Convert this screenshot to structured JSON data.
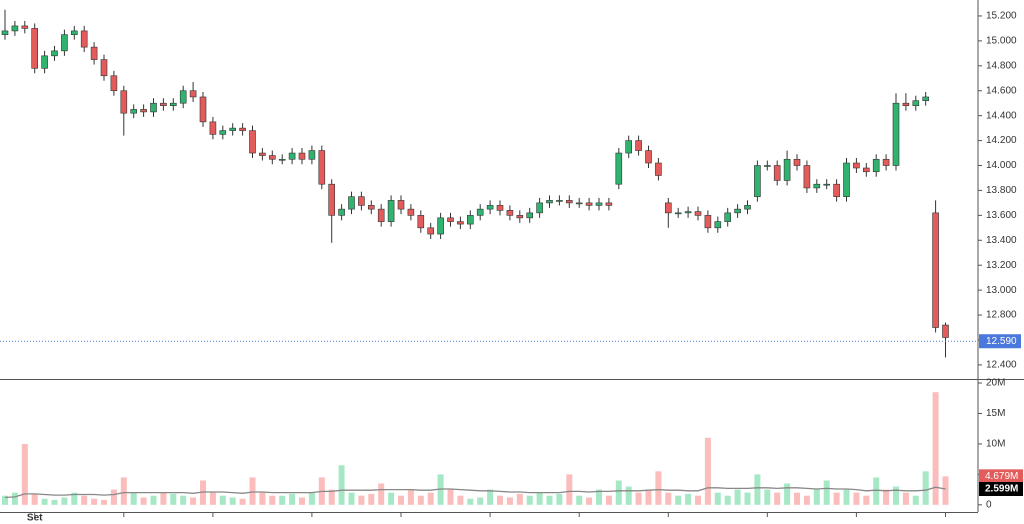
{
  "chart_data": {
    "type": "candlestick",
    "categories": [
      null,
      null,
      null,
      "Set",
      null,
      null,
      null,
      null,
      null,
      null,
      null,
      null,
      null,
      null,
      null,
      null,
      null,
      null,
      null,
      null,
      null,
      null,
      null,
      null,
      null,
      null,
      null,
      null,
      null,
      null,
      null,
      null,
      null,
      null,
      null,
      null,
      null,
      null,
      null,
      null,
      null,
      null,
      null,
      null,
      null,
      null,
      null,
      null,
      null,
      null,
      null,
      null,
      null,
      null,
      null,
      null,
      null,
      null,
      null,
      null,
      null,
      null,
      null,
      null,
      null,
      null,
      null,
      null,
      null,
      null,
      null,
      null,
      null,
      null,
      null,
      null,
      null,
      null,
      null,
      null,
      null,
      null,
      null,
      null,
      null,
      null,
      null,
      null,
      null,
      null,
      null,
      null,
      null,
      null,
      null,
      null
    ],
    "open": [
      15.05,
      15.08,
      15.12,
      15.1,
      14.78,
      14.88,
      14.92,
      15.05,
      15.08,
      14.95,
      14.85,
      14.72,
      14.6,
      14.42,
      14.45,
      14.43,
      14.5,
      14.48,
      14.5,
      14.6,
      14.55,
      14.35,
      14.25,
      14.28,
      14.3,
      14.28,
      14.1,
      14.08,
      14.05,
      14.05,
      14.1,
      14.05,
      14.12,
      13.85,
      13.6,
      13.65,
      13.75,
      13.68,
      13.65,
      13.55,
      13.72,
      13.65,
      13.6,
      13.5,
      13.45,
      13.58,
      13.55,
      13.53,
      13.6,
      13.65,
      13.68,
      13.64,
      13.6,
      13.58,
      13.62,
      13.7,
      13.72,
      13.72,
      13.7,
      13.7,
      13.68,
      13.7,
      13.85,
      14.1,
      14.2,
      14.12,
      14.02,
      13.7,
      13.62,
      13.62,
      13.63,
      13.6,
      13.5,
      13.55,
      13.62,
      13.65,
      13.75,
      14.0,
      14.0,
      13.88,
      14.05,
      14.0,
      13.82,
      13.85,
      13.85,
      13.75,
      14.02,
      13.98,
      13.95,
      14.05,
      14.0,
      14.5,
      14.48,
      14.52,
      13.62,
      12.72
    ],
    "high": [
      15.25,
      15.16,
      15.16,
      15.14,
      14.92,
      14.96,
      15.09,
      15.12,
      15.12,
      14.99,
      14.89,
      14.76,
      14.64,
      14.49,
      14.49,
      14.54,
      14.54,
      14.54,
      14.64,
      14.67,
      14.59,
      14.39,
      14.32,
      14.34,
      14.34,
      14.32,
      14.14,
      14.12,
      14.09,
      14.14,
      14.14,
      14.16,
      14.16,
      13.89,
      13.69,
      13.79,
      13.79,
      13.72,
      13.69,
      13.76,
      13.76,
      13.69,
      13.64,
      13.54,
      13.62,
      13.62,
      13.59,
      13.64,
      13.69,
      13.72,
      13.72,
      13.68,
      13.64,
      13.66,
      13.74,
      13.76,
      13.76,
      13.76,
      13.74,
      13.74,
      13.74,
      13.74,
      14.14,
      14.24,
      14.24,
      14.16,
      14.06,
      13.74,
      13.66,
      13.67,
      13.67,
      13.64,
      13.59,
      13.66,
      13.69,
      13.72,
      14.04,
      14.04,
      14.04,
      14.12,
      14.09,
      14.04,
      13.89,
      13.89,
      13.89,
      14.06,
      14.06,
      14.02,
      14.09,
      14.09,
      14.58,
      14.58,
      14.56,
      14.59,
      13.72,
      12.74
    ],
    "low": [
      15.01,
      15.04,
      15.06,
      14.74,
      14.74,
      14.84,
      14.88,
      15.01,
      14.91,
      14.81,
      14.68,
      14.56,
      14.24,
      14.38,
      14.39,
      14.39,
      14.44,
      14.44,
      14.46,
      14.51,
      14.31,
      14.21,
      14.21,
      14.24,
      14.24,
      14.06,
      14.04,
      14.01,
      14.01,
      14.01,
      14.01,
      14.01,
      13.81,
      13.38,
      13.56,
      13.61,
      13.64,
      13.61,
      13.51,
      13.51,
      13.61,
      13.56,
      13.46,
      13.41,
      13.41,
      13.51,
      13.49,
      13.49,
      13.56,
      13.61,
      13.6,
      13.56,
      13.54,
      13.54,
      13.58,
      13.66,
      13.68,
      13.66,
      13.66,
      13.64,
      13.64,
      13.64,
      13.81,
      14.06,
      14.08,
      13.98,
      13.88,
      13.5,
      13.58,
      13.58,
      13.56,
      13.46,
      13.46,
      13.51,
      13.58,
      13.61,
      13.71,
      13.96,
      13.84,
      13.84,
      13.96,
      13.78,
      13.78,
      13.81,
      13.71,
      13.71,
      13.94,
      13.91,
      13.91,
      13.96,
      13.96,
      14.44,
      14.44,
      14.48,
      12.66,
      12.46
    ],
    "close": [
      15.08,
      15.12,
      15.1,
      14.78,
      14.88,
      14.92,
      15.05,
      15.08,
      14.95,
      14.85,
      14.72,
      14.6,
      14.42,
      14.45,
      14.43,
      14.5,
      14.48,
      14.5,
      14.6,
      14.55,
      14.35,
      14.25,
      14.28,
      14.3,
      14.28,
      14.1,
      14.08,
      14.05,
      14.05,
      14.1,
      14.05,
      14.12,
      13.85,
      13.6,
      13.65,
      13.75,
      13.68,
      13.65,
      13.55,
      13.72,
      13.65,
      13.6,
      13.5,
      13.45,
      13.58,
      13.55,
      13.53,
      13.6,
      13.65,
      13.68,
      13.64,
      13.6,
      13.58,
      13.62,
      13.7,
      13.72,
      13.72,
      13.7,
      13.7,
      13.68,
      13.7,
      13.68,
      14.1,
      14.2,
      14.12,
      14.02,
      13.92,
      13.62,
      13.62,
      13.63,
      13.6,
      13.5,
      13.55,
      13.62,
      13.65,
      13.68,
      14.0,
      14.0,
      13.88,
      14.05,
      14.0,
      13.82,
      13.85,
      13.85,
      13.75,
      14.02,
      13.98,
      13.95,
      14.05,
      14.0,
      14.5,
      14.48,
      14.52,
      14.55,
      12.7,
      12.62
    ],
    "volume": [
      1500000,
      2000000,
      10000000,
      1800000,
      1000000,
      800000,
      1200000,
      2000000,
      1500000,
      1000000,
      800000,
      2500000,
      4500000,
      2000000,
      1200000,
      1500000,
      2000000,
      1800000,
      1500000,
      1200000,
      4000000,
      2000000,
      1500000,
      1200000,
      1000000,
      4500000,
      2000000,
      1500000,
      1500000,
      1800000,
      1200000,
      2000000,
      4500000,
      2500000,
      6500000,
      2000000,
      1500000,
      1800000,
      3500000,
      2000000,
      1500000,
      2500000,
      1500000,
      2000000,
      5000000,
      2500000,
      1500000,
      1000000,
      1200000,
      2500000,
      1500000,
      1200000,
      1800000,
      1500000,
      2000000,
      1500000,
      1800000,
      5000000,
      1500000,
      1200000,
      2500000,
      1500000,
      4000000,
      3000000,
      2000000,
      2500000,
      5500000,
      2000000,
      1500000,
      1800000,
      1500000,
      11000000,
      2000000,
      1500000,
      2500000,
      2000000,
      5000000,
      2500000,
      2000000,
      3500000,
      2000000,
      1500000,
      2500000,
      4000000,
      2000000,
      2500000,
      2000000,
      1500000,
      4500000,
      2500000,
      3000000,
      2000000,
      1500000,
      5500000,
      18500000,
      4679000
    ],
    "volume_ma": [
      1200000,
      1300000,
      1800000,
      1800000,
      1700000,
      1600000,
      1600000,
      1700000,
      1700000,
      1700000,
      1600000,
      1700000,
      2000000,
      2000000,
      2000000,
      2000000,
      2000000,
      2000000,
      2000000,
      1900000,
      2100000,
      2100000,
      2100000,
      2000000,
      1900000,
      2100000,
      2100000,
      2000000,
      2000000,
      2000000,
      2000000,
      2000000,
      2200000,
      2200000,
      2400000,
      2400000,
      2400000,
      2400000,
      2500000,
      2500000,
      2500000,
      2500000,
      2400000,
      2400000,
      2600000,
      2600000,
      2500000,
      2400000,
      2300000,
      2300000,
      2200000,
      2100000,
      2100000,
      2000000,
      2000000,
      2000000,
      2000000,
      2200000,
      2200000,
      2100000,
      2200000,
      2200000,
      2300000,
      2300000,
      2300000,
      2400000,
      2500000,
      2400000,
      2400000,
      2300000,
      2300000,
      2800000,
      2800000,
      2700000,
      2700000,
      2700000,
      2800000,
      2800000,
      2700000,
      2800000,
      2800000,
      2700000,
      2600000,
      2700000,
      2600000,
      2600000,
      2500000,
      2300000,
      2400000,
      2300000,
      2400000,
      2300000,
      2300000,
      2400000,
      2900000,
      2599000
    ],
    "up_color": "#2fb36e",
    "down_color": "#e35b5b",
    "volume_up_color": "#a6e8c6",
    "volume_down_color": "#fbbcbc",
    "ma_color": "#888888",
    "ylim": [
      12.295,
      15.328
    ],
    "yticks": [
      {
        "value": 12.4,
        "label": "12.400"
      },
      {
        "value": 12.6,
        "label": "12.600"
      },
      {
        "value": 12.8,
        "label": "12.800"
      },
      {
        "value": 13.0,
        "label": "13.000"
      },
      {
        "value": 13.2,
        "label": "13.200"
      },
      {
        "value": 13.4,
        "label": "13.400"
      },
      {
        "value": 13.6,
        "label": "13.600"
      },
      {
        "value": 13.8,
        "label": "13.800"
      },
      {
        "value": 14.0,
        "label": "14.000"
      },
      {
        "value": 14.2,
        "label": "14.200"
      },
      {
        "value": 14.4,
        "label": "14.400"
      },
      {
        "value": 14.6,
        "label": "14.600"
      },
      {
        "value": 14.8,
        "label": "14.800"
      },
      {
        "value": 15.0,
        "label": "15.000"
      },
      {
        "value": 15.2,
        "label": "15.200"
      }
    ],
    "y2lim": [
      -850000,
      20500000
    ],
    "y2ticks": [
      0,
      {
        "value": 5000000,
        "label": "5M"
      },
      {
        "value": 10000000,
        "label": "10M"
      },
      {
        "value": 15000000,
        "label": "15M"
      },
      {
        "value": 20000000,
        "label": "20M"
      }
    ],
    "price_line": {
      "value": 12.59,
      "label": "12.590",
      "color": "#4a78dc"
    },
    "volume_last_label": "4.679M",
    "ma_last_label": "2.599M"
  }
}
